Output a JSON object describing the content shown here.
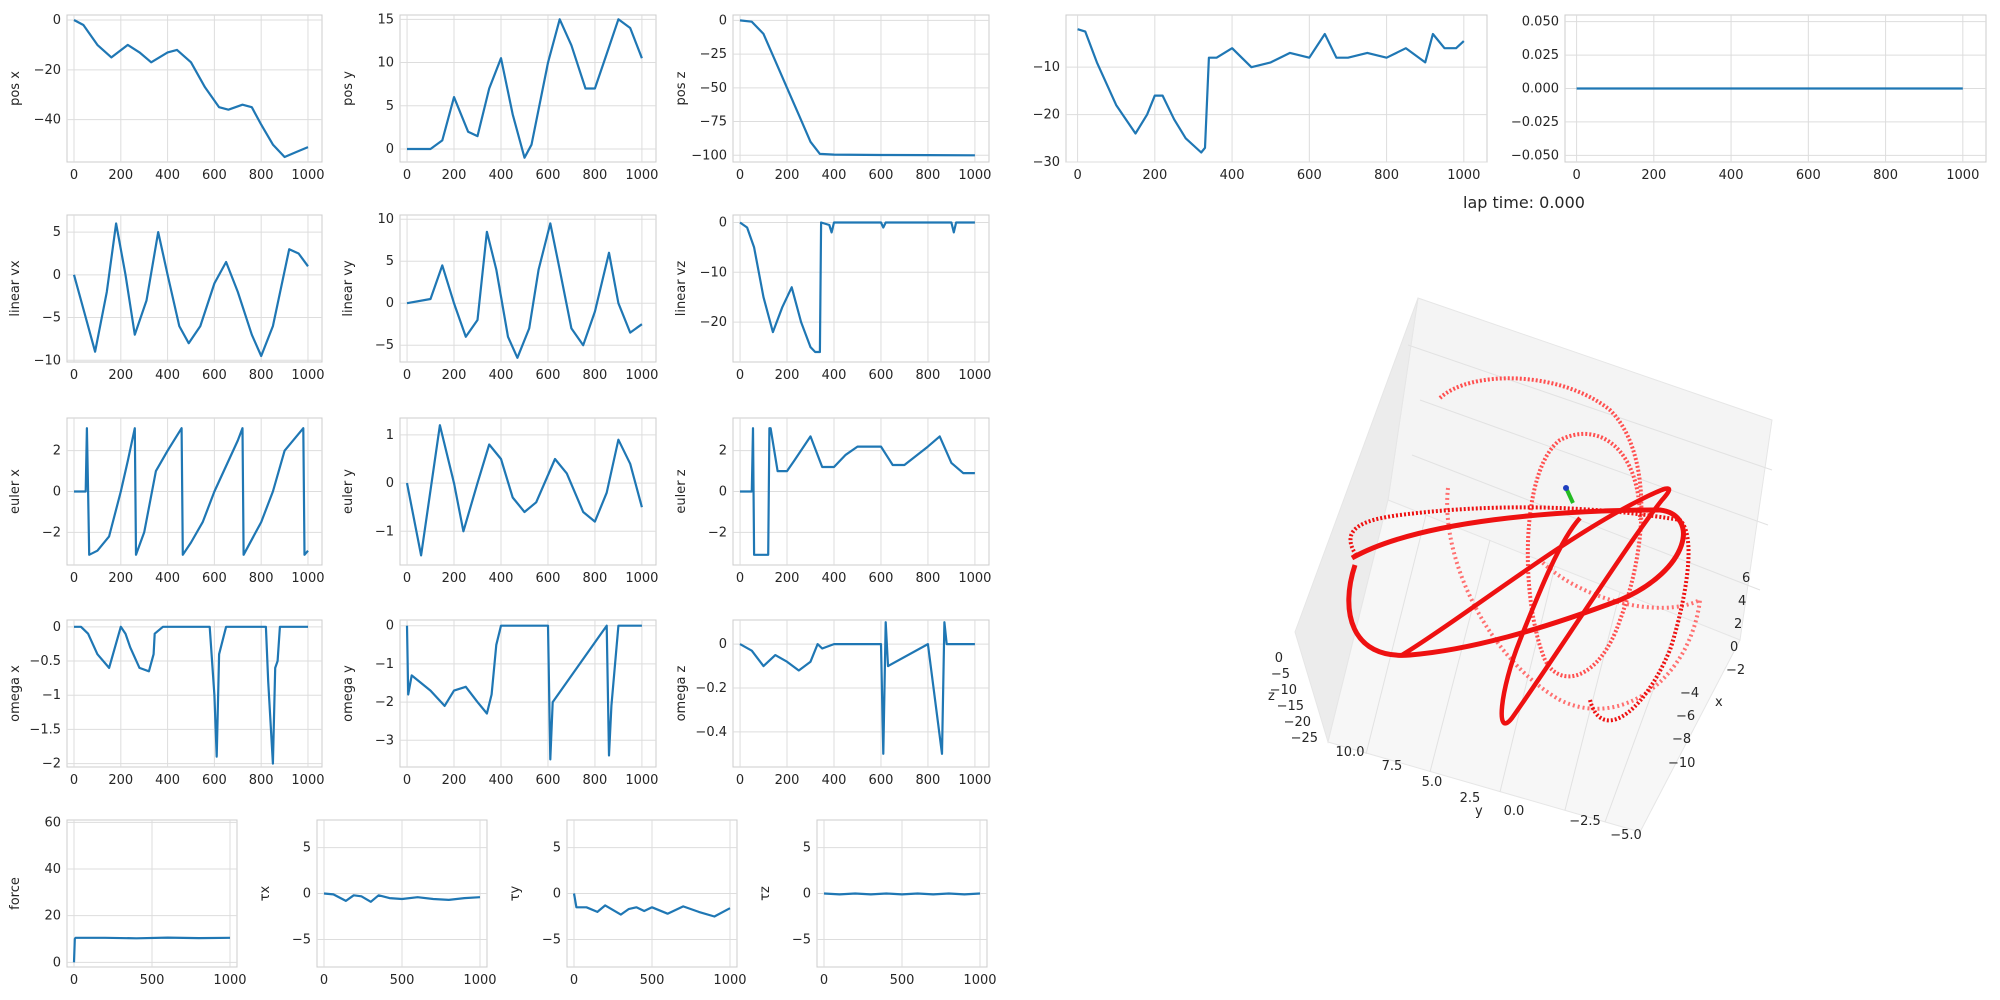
{
  "colors": {
    "series": "#1f77b4",
    "grid": "#dddddd",
    "axes_face": "#ffffff",
    "traj": "#ff0000",
    "drone_a": "#1f3fbf",
    "drone_b": "#22bb22"
  },
  "lap_time_text": "lap time: 0.000",
  "chart_data": [
    {
      "id": "pos_x",
      "type": "line",
      "ylabel": "pos x",
      "xlim": [
        -30,
        1060
      ],
      "ylim": [
        -57,
        2
      ],
      "xticks": [
        0,
        200,
        400,
        600,
        800,
        1000
      ],
      "yticks": [
        0,
        -20,
        -40
      ],
      "x": [
        0,
        40,
        100,
        160,
        230,
        280,
        330,
        400,
        440,
        500,
        560,
        620,
        660,
        720,
        760,
        800,
        850,
        900,
        950,
        1000
      ],
      "y": [
        0,
        -2,
        -10,
        -15,
        -10,
        -13,
        -17,
        -13,
        -12,
        -17,
        -27,
        -35,
        -36,
        -34,
        -35,
        -42,
        -50,
        -55,
        -53,
        -51
      ]
    },
    {
      "id": "pos_y",
      "type": "line",
      "ylabel": "pos y",
      "xlim": [
        -30,
        1060
      ],
      "ylim": [
        -1.5,
        15.5
      ],
      "xticks": [
        0,
        200,
        400,
        600,
        800,
        1000
      ],
      "yticks": [
        0,
        5,
        10,
        15
      ],
      "x": [
        0,
        100,
        150,
        200,
        260,
        300,
        350,
        400,
        450,
        500,
        530,
        600,
        650,
        700,
        760,
        800,
        850,
        900,
        950,
        1000
      ],
      "y": [
        0,
        0,
        1,
        6,
        2,
        1.5,
        7,
        10.5,
        4,
        -1,
        0.5,
        10,
        15,
        12,
        7,
        7,
        11,
        15,
        14,
        10.5
      ]
    },
    {
      "id": "pos_z",
      "type": "line",
      "ylabel": "pos z",
      "xlim": [
        -30,
        1060
      ],
      "ylim": [
        -105,
        4
      ],
      "xticks": [
        0,
        200,
        400,
        600,
        800,
        1000
      ],
      "yticks": [
        0,
        -25,
        -50,
        -75,
        -100
      ],
      "x": [
        0,
        50,
        100,
        150,
        200,
        250,
        300,
        340,
        400,
        600,
        800,
        1000
      ],
      "y": [
        0,
        -1,
        -10,
        -30,
        -50,
        -70,
        -90,
        -99,
        -99.5,
        -99.8,
        -99.9,
        -100
      ]
    },
    {
      "id": "pos_extra",
      "type": "line",
      "ylabel": "",
      "xlim": [
        -30,
        1060
      ],
      "ylim": [
        -30,
        1
      ],
      "xticks": [
        0,
        200,
        400,
        600,
        800,
        1000
      ],
      "yticks": [
        -10,
        -20,
        -30
      ],
      "x": [
        0,
        20,
        50,
        100,
        150,
        180,
        200,
        220,
        250,
        280,
        320,
        330,
        340,
        360,
        400,
        450,
        500,
        550,
        600,
        640,
        670,
        700,
        750,
        800,
        850,
        900,
        920,
        950,
        980,
        1000
      ],
      "y": [
        -2,
        -2.5,
        -9,
        -18,
        -24,
        -20,
        -16,
        -16,
        -21,
        -25,
        -28,
        -27,
        -8,
        -8,
        -6,
        -10,
        -9,
        -7,
        -8,
        -3,
        -8,
        -8,
        -7,
        -8,
        -6,
        -9,
        -3,
        -6,
        -6,
        -4.5
      ]
    },
    {
      "id": "pos_flat",
      "type": "line",
      "ylabel": "",
      "xlim": [
        -30,
        1060
      ],
      "ylim": [
        -0.055,
        0.055
      ],
      "xticks": [
        0,
        200,
        400,
        600,
        800,
        1000
      ],
      "yticks": [
        0.05,
        0.025,
        0,
        -0.025,
        -0.05
      ],
      "ytick_labels": [
        "0.050",
        "0.025",
        "0.000",
        "−0.025",
        "−0.050"
      ],
      "x": [
        0,
        1000
      ],
      "y": [
        0,
        0
      ]
    },
    {
      "id": "linear_vx",
      "type": "line",
      "ylabel": "linear vx",
      "xlim": [
        -30,
        1060
      ],
      "ylim": [
        -10.2,
        7
      ],
      "xticks": [
        0,
        200,
        400,
        600,
        800,
        1000
      ],
      "yticks": [
        5,
        0,
        -5,
        -10
      ],
      "x": [
        0,
        40,
        90,
        140,
        180,
        220,
        260,
        310,
        360,
        400,
        450,
        490,
        540,
        600,
        650,
        700,
        760,
        800,
        850,
        920,
        960,
        1000
      ],
      "y": [
        0,
        -4,
        -9,
        -2,
        6,
        0,
        -7,
        -3,
        5,
        0,
        -6,
        -8,
        -6,
        -1,
        1.5,
        -2,
        -7,
        -9.5,
        -6,
        3,
        2.5,
        1
      ]
    },
    {
      "id": "linear_vy",
      "type": "line",
      "ylabel": "linear vy",
      "xlim": [
        -30,
        1060
      ],
      "ylim": [
        -7,
        10.5
      ],
      "xticks": [
        0,
        200,
        400,
        600,
        800,
        1000
      ],
      "yticks": [
        10,
        5,
        0,
        -5
      ],
      "x": [
        0,
        100,
        150,
        200,
        250,
        300,
        340,
        380,
        430,
        470,
        520,
        560,
        610,
        650,
        700,
        750,
        800,
        860,
        900,
        950,
        1000
      ],
      "y": [
        0,
        0.5,
        4.5,
        0,
        -4,
        -2,
        8.5,
        4,
        -4,
        -6.5,
        -3,
        4,
        9.5,
        4,
        -3,
        -5,
        -1,
        6,
        0,
        -3.5,
        -2.5
      ]
    },
    {
      "id": "linear_vz",
      "type": "line",
      "ylabel": "linear vz",
      "xlim": [
        -30,
        1060
      ],
      "ylim": [
        -28,
        1.5
      ],
      "xticks": [
        0,
        200,
        400,
        600,
        800,
        1000
      ],
      "yticks": [
        0,
        -10,
        -20
      ],
      "x": [
        0,
        30,
        60,
        100,
        140,
        180,
        220,
        260,
        300,
        320,
        340,
        345,
        380,
        390,
        400,
        600,
        610,
        620,
        900,
        910,
        920,
        1000
      ],
      "y": [
        0,
        -1,
        -5,
        -15,
        -22,
        -17,
        -13,
        -20,
        -25,
        -26,
        -26,
        0,
        -0.5,
        -2,
        0,
        0,
        -1,
        0,
        0,
        -2,
        0,
        0
      ]
    },
    {
      "id": "euler_x",
      "type": "line",
      "ylabel": "euler x",
      "xlim": [
        -30,
        1060
      ],
      "ylim": [
        -3.6,
        3.6
      ],
      "xticks": [
        0,
        200,
        400,
        600,
        800,
        1000
      ],
      "yticks": [
        2,
        0,
        -2
      ],
      "x": [
        0,
        50,
        55,
        60,
        65,
        100,
        150,
        200,
        230,
        260,
        265,
        300,
        350,
        400,
        460,
        465,
        500,
        550,
        600,
        700,
        720,
        725,
        800,
        850,
        900,
        980,
        985,
        1000
      ],
      "y": [
        0,
        0,
        3.1,
        0,
        -3.1,
        -2.9,
        -2.2,
        0,
        1.5,
        3.1,
        -3.1,
        -2,
        1,
        2,
        3.1,
        -3.1,
        -2.5,
        -1.5,
        0,
        2.5,
        3.1,
        -3.1,
        -1.5,
        0,
        2,
        3.1,
        -3.1,
        -2.9
      ]
    },
    {
      "id": "euler_y",
      "type": "line",
      "ylabel": "euler y",
      "xlim": [
        -30,
        1060
      ],
      "ylim": [
        -1.7,
        1.35
      ],
      "xticks": [
        0,
        200,
        400,
        600,
        800,
        1000
      ],
      "yticks": [
        1,
        0,
        -1
      ],
      "x": [
        0,
        60,
        140,
        200,
        240,
        300,
        350,
        400,
        450,
        500,
        550,
        630,
        680,
        750,
        800,
        850,
        900,
        950,
        1000
      ],
      "y": [
        0,
        -1.5,
        1.2,
        0,
        -1,
        0,
        0.8,
        0.5,
        -0.3,
        -0.6,
        -0.4,
        0.5,
        0.2,
        -0.6,
        -0.8,
        -0.2,
        0.9,
        0.4,
        -0.5
      ]
    },
    {
      "id": "euler_z",
      "type": "line",
      "ylabel": "euler z",
      "xlim": [
        -30,
        1060
      ],
      "ylim": [
        -3.6,
        3.6
      ],
      "xticks": [
        0,
        200,
        400,
        600,
        800,
        1000
      ],
      "yticks": [
        2,
        0,
        -2
      ],
      "x": [
        0,
        50,
        55,
        60,
        65,
        120,
        125,
        130,
        160,
        200,
        230,
        300,
        350,
        400,
        450,
        500,
        600,
        650,
        700,
        800,
        850,
        900,
        950,
        1000
      ],
      "y": [
        0,
        0,
        3.1,
        -3.1,
        -3.1,
        -3.1,
        3.1,
        3.1,
        1,
        1,
        1.5,
        2.7,
        1.2,
        1.2,
        1.8,
        2.2,
        2.2,
        1.3,
        1.3,
        2.2,
        2.7,
        1.4,
        0.9,
        0.9
      ]
    },
    {
      "id": "omega_x",
      "type": "line",
      "ylabel": "omega x",
      "xlim": [
        -30,
        1060
      ],
      "ylim": [
        -2.05,
        0.1
      ],
      "xticks": [
        0,
        200,
        400,
        600,
        800,
        1000
      ],
      "yticks": [
        0,
        -0.5,
        -1,
        -1.5,
        -2
      ],
      "x": [
        0,
        30,
        60,
        100,
        150,
        200,
        220,
        240,
        280,
        320,
        340,
        345,
        380,
        400,
        420,
        450,
        580,
        600,
        610,
        620,
        650,
        820,
        830,
        850,
        860,
        870,
        880,
        1000
      ],
      "y": [
        0,
        0,
        -0.1,
        -0.4,
        -0.6,
        0,
        -0.1,
        -0.3,
        -0.6,
        -0.65,
        -0.4,
        -0.1,
        0,
        0,
        0,
        0,
        0,
        -1.0,
        -1.9,
        -0.4,
        0,
        0,
        -0.8,
        -2.0,
        -0.6,
        -0.5,
        0,
        0
      ]
    },
    {
      "id": "omega_y",
      "type": "line",
      "ylabel": "omega y",
      "xlim": [
        -30,
        1060
      ],
      "ylim": [
        -3.7,
        0.15
      ],
      "xticks": [
        0,
        200,
        400,
        600,
        800,
        1000
      ],
      "yticks": [
        0,
        -1,
        -2,
        -3
      ],
      "x": [
        0,
        5,
        20,
        60,
        100,
        160,
        200,
        250,
        300,
        340,
        360,
        380,
        400,
        600,
        610,
        620,
        850,
        860,
        870,
        900,
        1000
      ],
      "y": [
        0,
        -1.8,
        -1.3,
        -1.5,
        -1.7,
        -2.1,
        -1.7,
        -1.6,
        -2.0,
        -2.3,
        -1.8,
        -0.5,
        0,
        0,
        -3.5,
        -2.0,
        0,
        -3.4,
        -2.1,
        0,
        0
      ]
    },
    {
      "id": "omega_z",
      "type": "line",
      "ylabel": "omega z",
      "xlim": [
        -30,
        1060
      ],
      "ylim": [
        -0.56,
        0.11
      ],
      "xticks": [
        0,
        200,
        400,
        600,
        800,
        1000
      ],
      "yticks": [
        0,
        -0.2,
        -0.4
      ],
      "x": [
        0,
        50,
        100,
        150,
        200,
        250,
        300,
        330,
        350,
        400,
        600,
        610,
        620,
        630,
        800,
        860,
        870,
        880,
        900,
        1000
      ],
      "y": [
        0,
        -0.03,
        -0.1,
        -0.05,
        -0.08,
        -0.12,
        -0.08,
        0,
        -0.02,
        0,
        0,
        -0.5,
        0.1,
        -0.1,
        0,
        -0.5,
        0.1,
        0,
        0,
        0
      ]
    },
    {
      "id": "force",
      "type": "line",
      "ylabel": "force",
      "xlim": [
        -45,
        1045
      ],
      "ylim": [
        -2,
        61
      ],
      "xticks": [
        0,
        500,
        1000
      ],
      "yticks": [
        0,
        20,
        40,
        60
      ],
      "x": [
        0,
        5,
        10,
        200,
        400,
        600,
        800,
        1000
      ],
      "y": [
        0,
        10,
        10.5,
        10.5,
        10.3,
        10.6,
        10.4,
        10.5
      ]
    },
    {
      "id": "tau_x",
      "type": "line",
      "ylabel": "τx",
      "xlim": [
        -45,
        1045
      ],
      "ylim": [
        -8,
        8
      ],
      "xticks": [
        0,
        500,
        1000
      ],
      "yticks": [
        5,
        0,
        -5
      ],
      "x": [
        0,
        60,
        140,
        190,
        240,
        300,
        350,
        420,
        500,
        600,
        700,
        800,
        900,
        1000
      ],
      "y": [
        0,
        -0.1,
        -0.8,
        -0.2,
        -0.3,
        -0.9,
        -0.2,
        -0.5,
        -0.6,
        -0.4,
        -0.6,
        -0.7,
        -0.5,
        -0.4
      ]
    },
    {
      "id": "tau_y",
      "type": "line",
      "ylabel": "τy",
      "xlim": [
        -45,
        1045
      ],
      "ylim": [
        -8,
        8
      ],
      "xticks": [
        0,
        500,
        1000
      ],
      "yticks": [
        5,
        0,
        -5
      ],
      "x": [
        0,
        5,
        15,
        80,
        150,
        200,
        300,
        350,
        400,
        450,
        500,
        600,
        700,
        800,
        900,
        1000
      ],
      "y": [
        0,
        -0.5,
        -1.5,
        -1.5,
        -2.0,
        -1.3,
        -2.3,
        -1.7,
        -1.5,
        -1.9,
        -1.5,
        -2.2,
        -1.4,
        -2.0,
        -2.5,
        -1.6
      ]
    },
    {
      "id": "tau_z",
      "type": "line",
      "ylabel": "τz",
      "xlim": [
        -45,
        1045
      ],
      "ylim": [
        -8,
        8
      ],
      "xticks": [
        0,
        500,
        1000
      ],
      "yticks": [
        5,
        0,
        -5
      ],
      "x": [
        0,
        100,
        200,
        300,
        400,
        500,
        600,
        700,
        800,
        900,
        1000
      ],
      "y": [
        0,
        -0.1,
        0,
        -0.1,
        0,
        -0.1,
        0,
        -0.1,
        0,
        -0.1,
        0
      ]
    }
  ],
  "plot3d": {
    "x_ticks": [
      "6",
      "4",
      "2",
      "0",
      "−2",
      "−4",
      "−6",
      "−8",
      "−10"
    ],
    "y_ticks": [
      "10.0",
      "7.5",
      "5.0",
      "2.5",
      "0.0",
      "−2.5",
      "−5.0"
    ],
    "z_ticks": [
      "0",
      "−5",
      "−10",
      "−15",
      "−20",
      "−25"
    ],
    "x_label": "x",
    "y_label": "y",
    "z_label": "z"
  }
}
